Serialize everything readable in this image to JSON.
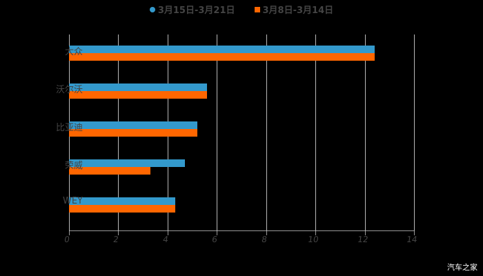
{
  "legend": [
    {
      "label": "3月15日-3月21日",
      "color": "#3399cc"
    },
    {
      "label": "3月8日-3月14日",
      "color": "#ff6600"
    }
  ],
  "watermark": "汽车之家",
  "chart_data": {
    "type": "bar",
    "orientation": "horizontal",
    "title": "",
    "xlabel": "",
    "ylabel": "",
    "categories": [
      "大众",
      "沃尔沃",
      "比亚迪",
      "荣威",
      "WEY"
    ],
    "series": [
      {
        "name": "3月15日-3月21日",
        "color": "#3399cc",
        "values": [
          12.4,
          5.6,
          5.2,
          4.7,
          4.3
        ]
      },
      {
        "name": "3月8日-3月14日",
        "color": "#ff6600",
        "values": [
          12.4,
          5.6,
          5.2,
          3.3,
          4.3
        ]
      }
    ],
    "xlim": [
      0,
      14
    ],
    "xticks": [
      "0",
      "2",
      "4",
      "6",
      "8",
      "10",
      "12",
      "14"
    ],
    "grid": true,
    "legend_position": "top"
  }
}
